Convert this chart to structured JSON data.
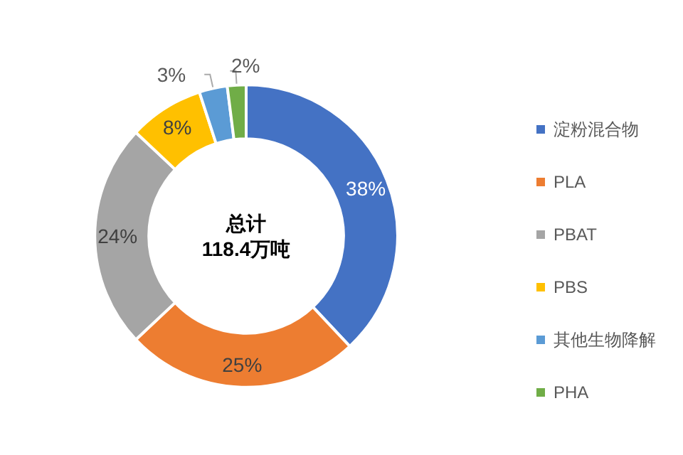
{
  "chart_data": {
    "type": "donut",
    "categories": [
      "淀粉混合物",
      "PLA",
      "PBAT",
      "PBS",
      "其他生物降解",
      "PHA"
    ],
    "values": [
      38,
      25,
      24,
      8,
      3,
      2
    ],
    "colors": [
      "#4472c4",
      "#ed7d31",
      "#a5a5a5",
      "#ffc000",
      "#5b9bd5",
      "#70ad47"
    ],
    "value_labels": [
      "38%",
      "25%",
      "24%",
      "8%",
      "3%",
      "2%"
    ],
    "annotations": [
      "总计\n118.4万吨"
    ],
    "legend": "right"
  }
}
